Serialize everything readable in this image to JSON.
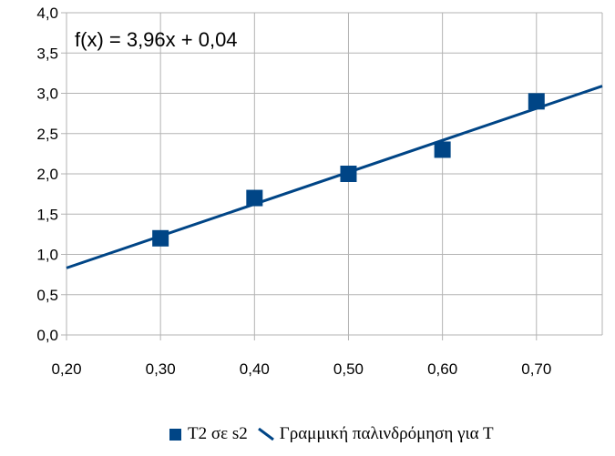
{
  "chart_data": {
    "type": "scatter",
    "xlim": [
      0.2,
      0.77
    ],
    "ylim": [
      0.0,
      4.0
    ],
    "x_ticks": [
      "0,20",
      "0,30",
      "0,40",
      "0,50",
      "0,60",
      "0,70"
    ],
    "x_tick_values": [
      0.2,
      0.3,
      0.4,
      0.5,
      0.6,
      0.7
    ],
    "y_ticks": [
      "0,0",
      "0,5",
      "1,0",
      "1,5",
      "2,0",
      "2,5",
      "3,0",
      "3,5",
      "4,0"
    ],
    "y_tick_values": [
      0.0,
      0.5,
      1.0,
      1.5,
      2.0,
      2.5,
      3.0,
      3.5,
      4.0
    ],
    "grid": true,
    "legend_position": "bottom",
    "series": [
      {
        "name": "T2 σε s2",
        "x": [
          0.3,
          0.4,
          0.5,
          0.6,
          0.7
        ],
        "y": [
          1.2,
          1.7,
          2.0,
          2.3,
          2.9
        ],
        "color": "#004586"
      }
    ],
    "trendline": {
      "name": "Γραμμική παλινδρόμηση για Τ",
      "slope": 3.96,
      "intercept": 0.04,
      "equation": "f(x) = 3,96x + 0,04",
      "color": "#004586"
    },
    "gridline_color": "#b3b3b3"
  }
}
